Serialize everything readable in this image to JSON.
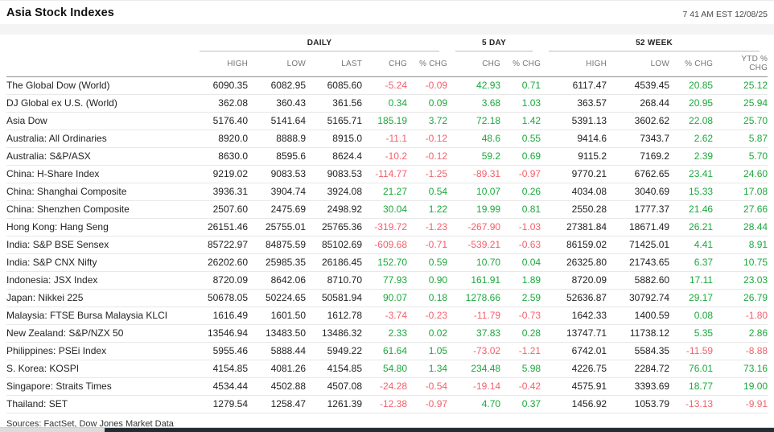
{
  "chart_data": {
    "type": "table",
    "title": "Asia Stock Indexes",
    "timestamp": "7 41 AM EST 12/08/25",
    "column_groups": [
      {
        "label": "DAILY",
        "span": 5
      },
      {
        "label": "5 DAY",
        "span": 2
      },
      {
        "label": "52 WEEK",
        "span": 4
      }
    ],
    "columns": [
      "HIGH",
      "LOW",
      "LAST",
      "CHG",
      "% CHG",
      "CHG",
      "% CHG",
      "HIGH",
      "LOW",
      "% CHG",
      "YTD % CHG"
    ],
    "rows": [
      {
        "name": "The Global Dow (World)",
        "values": [
          "6090.35",
          "6082.95",
          "6085.60",
          "-5.24",
          "-0.09",
          "42.93",
          "0.71",
          "6117.47",
          "4539.45",
          "20.85",
          "25.12"
        ],
        "colors": "nnndduunnuu"
      },
      {
        "name": "DJ Global ex U.S. (World)",
        "values": [
          "362.08",
          "360.43",
          "361.56",
          "0.34",
          "0.09",
          "3.68",
          "1.03",
          "363.57",
          "268.44",
          "20.95",
          "25.94"
        ],
        "colors": "nnnuuuunnuu"
      },
      {
        "name": "Asia Dow",
        "values": [
          "5176.40",
          "5141.64",
          "5165.71",
          "185.19",
          "3.72",
          "72.18",
          "1.42",
          "5391.13",
          "3602.62",
          "22.08",
          "25.70"
        ],
        "colors": "nnnuuuunnuu"
      },
      {
        "name": "Australia: All Ordinaries",
        "values": [
          "8920.0",
          "8888.9",
          "8915.0",
          "-11.1",
          "-0.12",
          "48.6",
          "0.55",
          "9414.6",
          "7343.7",
          "2.62",
          "5.87"
        ],
        "colors": "nnndduunnuu"
      },
      {
        "name": "Australia: S&P/ASX",
        "values": [
          "8630.0",
          "8595.6",
          "8624.4",
          "-10.2",
          "-0.12",
          "59.2",
          "0.69",
          "9115.2",
          "7169.2",
          "2.39",
          "5.70"
        ],
        "colors": "nnndduunnuu"
      },
      {
        "name": "China: H-Share Index",
        "values": [
          "9219.02",
          "9083.53",
          "9083.53",
          "-114.77",
          "-1.25",
          "-89.31",
          "-0.97",
          "9770.21",
          "6762.65",
          "23.41",
          "24.60"
        ],
        "colors": "nnnddddnnuu"
      },
      {
        "name": "China: Shanghai Composite",
        "values": [
          "3936.31",
          "3904.74",
          "3924.08",
          "21.27",
          "0.54",
          "10.07",
          "0.26",
          "4034.08",
          "3040.69",
          "15.33",
          "17.08"
        ],
        "colors": "nnnuuuunnuu"
      },
      {
        "name": "China: Shenzhen Composite",
        "values": [
          "2507.60",
          "2475.69",
          "2498.92",
          "30.04",
          "1.22",
          "19.99",
          "0.81",
          "2550.28",
          "1777.37",
          "21.46",
          "27.66"
        ],
        "colors": "nnnuuuunnuu"
      },
      {
        "name": "Hong Kong: Hang Seng",
        "values": [
          "26151.46",
          "25755.01",
          "25765.36",
          "-319.72",
          "-1.23",
          "-267.90",
          "-1.03",
          "27381.84",
          "18671.49",
          "26.21",
          "28.44"
        ],
        "colors": "nnnddddnnuu"
      },
      {
        "name": "India: S&P BSE Sensex",
        "values": [
          "85722.97",
          "84875.59",
          "85102.69",
          "-609.68",
          "-0.71",
          "-539.21",
          "-0.63",
          "86159.02",
          "71425.01",
          "4.41",
          "8.91"
        ],
        "colors": "nnnddddnnuu"
      },
      {
        "name": "India: S&P CNX Nifty",
        "values": [
          "26202.60",
          "25985.35",
          "26186.45",
          "152.70",
          "0.59",
          "10.70",
          "0.04",
          "26325.80",
          "21743.65",
          "6.37",
          "10.75"
        ],
        "colors": "nnnuuuunnuu"
      },
      {
        "name": "Indonesia: JSX Index",
        "values": [
          "8720.09",
          "8642.06",
          "8710.70",
          "77.93",
          "0.90",
          "161.91",
          "1.89",
          "8720.09",
          "5882.60",
          "17.11",
          "23.03"
        ],
        "colors": "nnnuuuunnuu"
      },
      {
        "name": "Japan: Nikkei 225",
        "values": [
          "50678.05",
          "50224.65",
          "50581.94",
          "90.07",
          "0.18",
          "1278.66",
          "2.59",
          "52636.87",
          "30792.74",
          "29.17",
          "26.79"
        ],
        "colors": "nnnuuuunnuu"
      },
      {
        "name": "Malaysia: FTSE Bursa Malaysia KLCI",
        "values": [
          "1616.49",
          "1601.50",
          "1612.78",
          "-3.74",
          "-0.23",
          "-11.79",
          "-0.73",
          "1642.33",
          "1400.59",
          "0.08",
          "-1.80"
        ],
        "colors": "nnnddddnnud"
      },
      {
        "name": "New Zealand: S&P/NZX 50",
        "values": [
          "13546.94",
          "13483.50",
          "13486.32",
          "2.33",
          "0.02",
          "37.83",
          "0.28",
          "13747.71",
          "11738.12",
          "5.35",
          "2.86"
        ],
        "colors": "nnnuuuunnuu"
      },
      {
        "name": "Philippines: PSEi Index",
        "values": [
          "5955.46",
          "5888.44",
          "5949.22",
          "61.64",
          "1.05",
          "-73.02",
          "-1.21",
          "6742.01",
          "5584.35",
          "-11.59",
          "-8.88"
        ],
        "colors": "nnnuuddnndd"
      },
      {
        "name": "S. Korea: KOSPI",
        "values": [
          "4154.85",
          "4081.26",
          "4154.85",
          "54.80",
          "1.34",
          "234.48",
          "5.98",
          "4226.75",
          "2284.72",
          "76.01",
          "73.16"
        ],
        "colors": "nnnuuuunnuu"
      },
      {
        "name": "Singapore: Straits Times",
        "values": [
          "4534.44",
          "4502.88",
          "4507.08",
          "-24.28",
          "-0.54",
          "-19.14",
          "-0.42",
          "4575.91",
          "3393.69",
          "18.77",
          "19.00"
        ],
        "colors": "nnnddddnnuu"
      },
      {
        "name": "Thailand: SET",
        "values": [
          "1279.54",
          "1258.47",
          "1261.39",
          "-12.38",
          "-0.97",
          "4.70",
          "0.37",
          "1456.92",
          "1053.79",
          "-13.13",
          "-9.91"
        ],
        "colors": "nnndduunndd"
      }
    ],
    "source": "Sources: FactSet, Dow Jones Market Data",
    "colors": {
      "up": "#1ca83c",
      "down": "#f4606c",
      "neutral": "#222222",
      "header_band": "#f4f4f4",
      "scrollbar_thumb": "#232c31"
    }
  }
}
